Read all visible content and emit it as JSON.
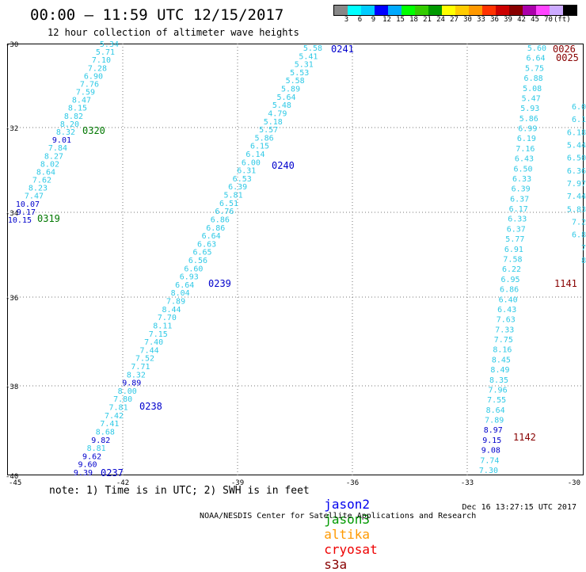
{
  "header": {
    "title": "00:00 – 11:59 UTC 12/15/2017",
    "subtitle": "12 hour collection of altimeter wave heights"
  },
  "colorbar": {
    "colors": [
      "#888888",
      "#00ffff",
      "#00ccff",
      "#0000ff",
      "#00aaff",
      "#00ff00",
      "#33cc00",
      "#009900",
      "#ffff00",
      "#ffcc00",
      "#ff9900",
      "#ff3300",
      "#cc0000",
      "#880000",
      "#aa00aa",
      "#ff44ff",
      "#ccaaff",
      "#000000"
    ],
    "ticks": [
      "3",
      "6",
      "9",
      "12",
      "15",
      "18",
      "21",
      "24",
      "27",
      "30",
      "33",
      "36",
      "39",
      "42",
      "45",
      "70",
      "(ft)"
    ]
  },
  "axes": {
    "lat_labels": [
      "-30",
      "-32",
      "-34",
      "-36",
      "-38",
      "-40"
    ],
    "lon_labels": [
      "-45",
      "-42",
      "-39",
      "-36",
      "-33",
      "-30"
    ]
  },
  "tracks": {
    "jason2_a": [
      "5.34",
      "5.71",
      "7.10",
      "7.28",
      "6.90",
      "7.76",
      "7.59",
      "8.47",
      "8.15",
      "8.82",
      "8.20",
      "8.32",
      "9.01",
      "7.84",
      "8.27",
      "8.02",
      "8.64",
      "7.62",
      "8.23",
      "7.47",
      "10.07",
      "9.17",
      "10.15"
    ],
    "jason2_b": [
      "5.58",
      "5.41",
      "5.31",
      "5.53",
      "5.58",
      "5.89",
      "5.64",
      "5.48",
      "4.79",
      "5.18",
      "5.57",
      "5.86",
      "6.15",
      "6.14",
      "6.00",
      "6.31",
      "6.53",
      "6.39",
      "5.81",
      "6.51",
      "6.76",
      "6.86",
      "6.86",
      "6.64",
      "6.63",
      "6.65",
      "6.56",
      "6.60",
      "6.93",
      "6.64",
      "8.04",
      "7.89",
      "8.44",
      "7.70",
      "8.11",
      "7.15",
      "7.40",
      "7.44",
      "7.52",
      "7.71",
      "8.32",
      "9.89",
      "8.00",
      "7.80",
      "7.81",
      "7.42",
      "7.41",
      "8.68",
      "9.82",
      "8.81",
      "9.62",
      "9.60",
      "9.39"
    ],
    "s3a_c": [
      "5.60",
      "6.64",
      "5.75",
      "6.88",
      "5.08",
      "5.47",
      "5.93",
      "5.86",
      "6.99",
      "6.19",
      "7.16",
      "6.43",
      "6.50",
      "6.33",
      "6.39",
      "6.37",
      "6.17",
      "6.33",
      "6.37",
      "5.77",
      "6.91",
      "7.58",
      "6.22",
      "6.95",
      "6.86",
      "6.40",
      "6.43",
      "7.63",
      "7.33",
      "7.75",
      "8.16",
      "8.45",
      "8.49",
      "8.35",
      "7.96",
      "7.55",
      "8.64",
      "7.89",
      "8.97",
      "9.15",
      "9.08",
      "7.74",
      "7.30"
    ],
    "s3a_d": [
      "6.0",
      "6.1",
      "6.18",
      "5.44",
      "6.50",
      "6.36",
      "7.97",
      "7.44",
      "5.83",
      "7.2",
      "6.8",
      "7",
      "8"
    ]
  },
  "passes": {
    "j2_0320": "0320",
    "j2_0319": "0319",
    "j2_0241": "0241",
    "j2_0240": "0240",
    "j2_0239": "0239",
    "j2_0238": "0238",
    "j2_0237": "0237",
    "c_0026": "0026",
    "c_0025": "0025",
    "c_1141": "1141",
    "c_1142": "1142"
  },
  "note": "note: 1) Time is in UTC; 2) SWH is in feet",
  "legend": {
    "jason2": "jason2",
    "jason3": "jason3",
    "altika": "altika",
    "cryosat": "cryosat",
    "s3a": "s3a"
  },
  "footer": {
    "credit": "NOAA/NESDIS Center for Satellite Applications and Research",
    "timestamp": "Dec 16 13:27:15 UTC 2017"
  },
  "colors": {
    "cyan": "#2fc9e6",
    "blue": "#0000cc",
    "green": "#007700",
    "darkred": "#880000"
  }
}
